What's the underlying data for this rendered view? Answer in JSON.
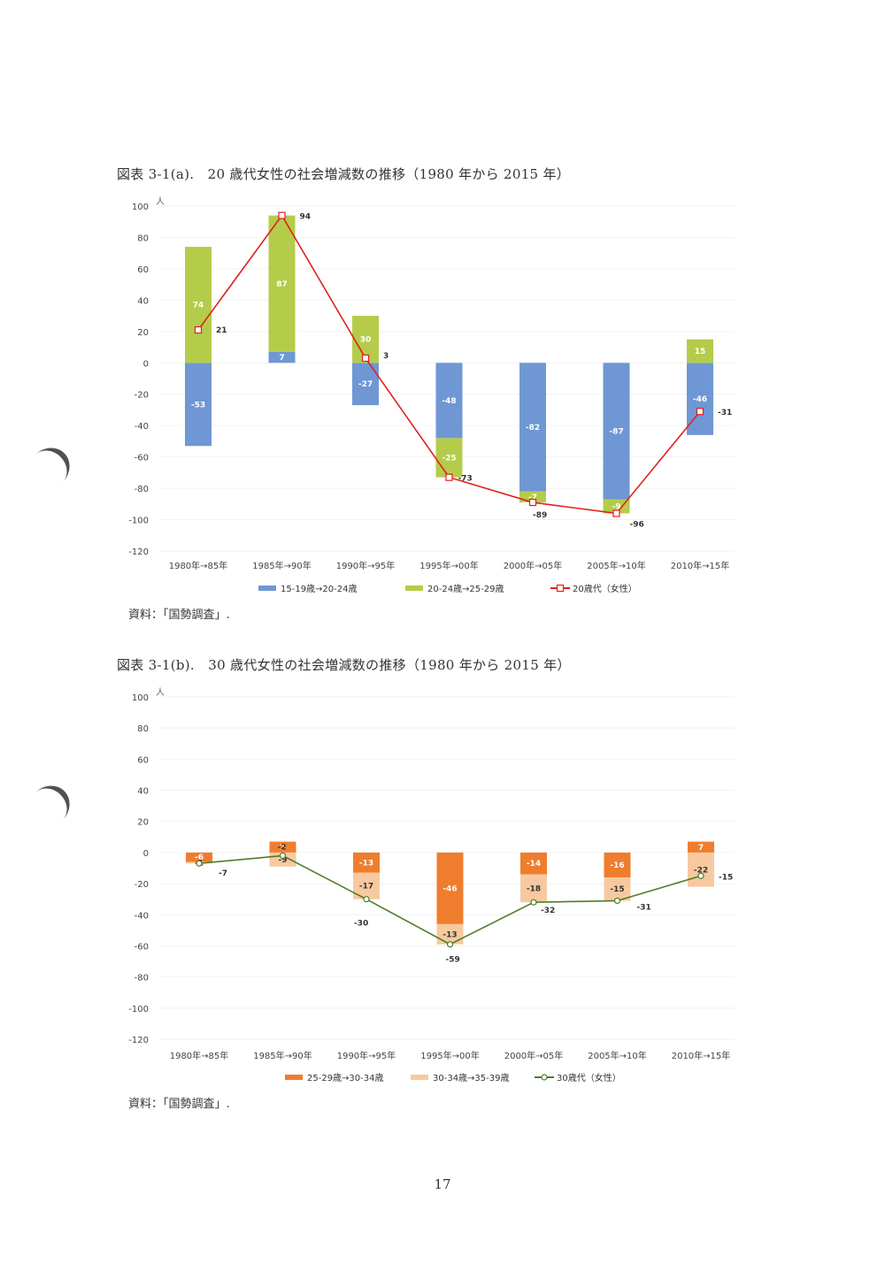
{
  "chart_data": [
    {
      "type": "bar",
      "stacked": true,
      "title": "図表 3-1(a).　20 歳代女性の社会増減数の推移（1980 年から 2015 年）",
      "unit_label": "人",
      "categories": [
        "1980年→85年",
        "1985年→90年",
        "1990年→95年",
        "1995年→00年",
        "2000年→05年",
        "2005年→10年",
        "2010年→15年"
      ],
      "ylim": [
        -120,
        100
      ],
      "yticks": [
        100,
        80,
        60,
        40,
        20,
        0,
        -20,
        -40,
        -60,
        -80,
        -100,
        -120
      ],
      "series": [
        {
          "name": "15-19歳→20-24歳",
          "kind": "bar",
          "color": "#6f97d4",
          "values": [
            -53,
            7,
            -27,
            -48,
            -82,
            -87,
            -46
          ]
        },
        {
          "name": "20-24歳→25-29歳",
          "kind": "bar",
          "color": "#b4cc4a",
          "values": [
            74,
            87,
            30,
            -25,
            -7,
            -9,
            15
          ]
        },
        {
          "name": "20歳代（女性）",
          "kind": "line",
          "color": "#e0201e",
          "values": [
            21,
            94,
            3,
            -73,
            -89,
            -96,
            -31
          ]
        }
      ]
    },
    {
      "type": "bar",
      "stacked": true,
      "title": "図表 3-1(b).　30 歳代女性の社会増減数の推移（1980 年から 2015 年）",
      "unit_label": "人",
      "categories": [
        "1980年→85年",
        "1985年→90年",
        "1990年→95年",
        "1995年→00年",
        "2000年→05年",
        "2005年→10年",
        "2010年→15年"
      ],
      "ylim": [
        -120,
        100
      ],
      "yticks": [
        100,
        80,
        60,
        40,
        20,
        0,
        -20,
        -40,
        -60,
        -80,
        -100,
        -120
      ],
      "series": [
        {
          "name": "25-29歳→30-34歳",
          "kind": "bar",
          "color": "#ef7d2e",
          "values": [
            -6,
            7,
            -13,
            -46,
            -14,
            -16,
            7
          ]
        },
        {
          "name": "30-34歳→35-39歳",
          "kind": "bar",
          "color": "#f8c9a0",
          "values": [
            -1,
            -9,
            -17,
            -13,
            -18,
            -15,
            -22
          ]
        },
        {
          "name": "30歳代（女性）",
          "kind": "line",
          "color": "#4e7d2a",
          "values": [
            -7,
            -2,
            -30,
            -59,
            -32,
            -31,
            -15
          ]
        }
      ]
    }
  ],
  "source_a": "資料：「国勢調査」.",
  "source_b": "資料：「国勢調査」.",
  "page_number": "17"
}
